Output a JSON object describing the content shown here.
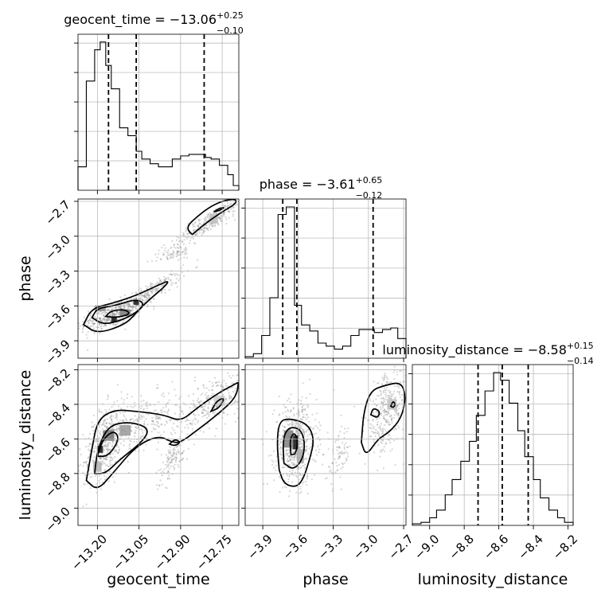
{
  "chart_data": {
    "type": "corner",
    "parameters": [
      {
        "name": "geocent_time",
        "axis_label": "geocent_time",
        "title_main": "geocent_time = −13.06",
        "title_sup": "+0.25",
        "title_sub": "−0.10",
        "range": [
          -13.27,
          -12.69
        ],
        "ticks": [
          -13.2,
          -13.05,
          -12.9,
          -12.75
        ],
        "tick_labels": [
          "−13.20",
          "−13.05",
          "−12.90",
          "−12.75"
        ],
        "quantiles": [
          -13.16,
          -13.06,
          -12.815
        ],
        "hist_edges": [
          -13.27,
          -13.24,
          -13.21,
          -13.19,
          -13.17,
          -13.15,
          -13.12,
          -13.09,
          -13.06,
          -13.04,
          -13.01,
          -12.98,
          -12.96,
          -12.93,
          -12.9,
          -12.87,
          -12.84,
          -12.81,
          -12.79,
          -12.76,
          -12.73,
          -12.71,
          -12.69
        ],
        "hist_counts": [
          0.15,
          0.7,
          0.9,
          0.95,
          0.8,
          0.65,
          0.4,
          0.35,
          0.25,
          0.2,
          0.17,
          0.15,
          0.15,
          0.2,
          0.22,
          0.23,
          0.23,
          0.21,
          0.2,
          0.16,
          0.1,
          0.03
        ]
      },
      {
        "name": "phase",
        "axis_label": "phase",
        "title_main": "phase = −3.61",
        "title_sup": "+0.65",
        "title_sub": "−0.12",
        "range": [
          -4.05,
          -2.68
        ],
        "ticks": [
          -3.9,
          -3.6,
          -3.3,
          -3.0,
          -2.7
        ],
        "tick_labels": [
          "−3.9",
          "−3.6",
          "−3.3",
          "−3.0",
          "−2.7"
        ],
        "quantiles": [
          -3.73,
          -3.61,
          -2.96
        ],
        "hist_edges": [
          -4.05,
          -3.98,
          -3.91,
          -3.84,
          -3.77,
          -3.7,
          -3.63,
          -3.57,
          -3.5,
          -3.43,
          -3.36,
          -3.29,
          -3.22,
          -3.15,
          -3.08,
          -3.02,
          -2.95,
          -2.88,
          -2.81,
          -2.75,
          -2.68
        ],
        "hist_counts": [
          0.01,
          0.03,
          0.15,
          0.4,
          0.95,
          1.0,
          0.35,
          0.22,
          0.18,
          0.1,
          0.08,
          0.06,
          0.08,
          0.15,
          0.19,
          0.19,
          0.17,
          0.19,
          0.2,
          0.13
        ]
      },
      {
        "name": "luminosity_distance",
        "axis_label": "luminosity_distance",
        "title_main": "luminosity_distance = −8.58",
        "title_sup": "+0.15",
        "title_sub": "−0.14",
        "range": [
          -9.1,
          -8.17
        ],
        "ticks": [
          -9.0,
          -8.8,
          -8.6,
          -8.4,
          -8.2
        ],
        "tick_labels": [
          "−9.0",
          "−8.8",
          "−8.6",
          "−8.4",
          "−8.2"
        ],
        "quantiles": [
          -8.72,
          -8.58,
          -8.43
        ],
        "hist_edges": [
          -9.1,
          -9.05,
          -9.0,
          -8.96,
          -8.91,
          -8.87,
          -8.82,
          -8.77,
          -8.73,
          -8.68,
          -8.63,
          -8.59,
          -8.54,
          -8.49,
          -8.45,
          -8.4,
          -8.36,
          -8.31,
          -8.26,
          -8.22,
          -8.17
        ],
        "hist_counts": [
          0.01,
          0.02,
          0.05,
          0.1,
          0.2,
          0.3,
          0.42,
          0.55,
          0.72,
          0.88,
          1.0,
          0.95,
          0.8,
          0.62,
          0.45,
          0.3,
          0.18,
          0.1,
          0.05,
          0.02
        ]
      }
    ],
    "pairs": [
      {
        "x": "geocent_time",
        "y": "phase",
        "sample_clusters": [
          {
            "x": -13.15,
            "y": -3.68,
            "sx": 0.055,
            "sy": 0.07,
            "rho": 0.6,
            "n": 420
          },
          {
            "x": -13.02,
            "y": -3.5,
            "sx": 0.06,
            "sy": 0.09,
            "rho": 0.9,
            "n": 260
          },
          {
            "x": -12.8,
            "y": -2.88,
            "sx": 0.07,
            "sy": 0.12,
            "rho": 0.93,
            "n": 300
          },
          {
            "x": -12.92,
            "y": -3.15,
            "sx": 0.03,
            "sy": 0.04,
            "rho": 0.5,
            "n": 60
          }
        ],
        "density_cells": [
          {
            "x": -13.14,
            "y": -3.72,
            "w": 0.02,
            "h": 0.04,
            "shade": 0.92
          },
          {
            "x": -13.06,
            "y": -3.57,
            "w": 0.02,
            "h": 0.04,
            "shade": 0.92
          },
          {
            "x": -13.1,
            "y": -3.66,
            "w": 0.04,
            "h": 0.06,
            "shade": 0.5
          },
          {
            "x": -13.19,
            "y": -3.62,
            "w": 0.04,
            "h": 0.05,
            "shade": 0.45
          },
          {
            "x": -12.78,
            "y": -2.85,
            "w": 0.03,
            "h": 0.08,
            "shade": 0.25
          }
        ],
        "contours": [
          [
            [
              -13.25,
              -3.76
            ],
            [
              -13.22,
              -3.62
            ],
            [
              -13.15,
              -3.58
            ],
            [
              -13.06,
              -3.51
            ],
            [
              -12.98,
              -3.42
            ],
            [
              -12.94,
              -3.38
            ],
            [
              -12.96,
              -3.44
            ],
            [
              -13.02,
              -3.56
            ],
            [
              -13.06,
              -3.66
            ],
            [
              -13.1,
              -3.76
            ],
            [
              -13.2,
              -3.84
            ],
            [
              -13.25,
              -3.76
            ]
          ],
          [
            [
              -13.22,
              -3.7
            ],
            [
              -13.2,
              -3.62
            ],
            [
              -13.14,
              -3.6
            ],
            [
              -13.06,
              -3.54
            ],
            [
              -13.03,
              -3.58
            ],
            [
              -13.06,
              -3.66
            ],
            [
              -13.12,
              -3.73
            ],
            [
              -13.18,
              -3.76
            ],
            [
              -13.22,
              -3.7
            ]
          ],
          [
            [
              -13.17,
              -3.69
            ],
            [
              -13.15,
              -3.64
            ],
            [
              -13.1,
              -3.63
            ],
            [
              -13.08,
              -3.67
            ],
            [
              -13.13,
              -3.7
            ],
            [
              -13.17,
              -3.69
            ]
          ],
          [
            [
              -12.85,
              -2.97
            ],
            [
              -12.81,
              -2.89
            ],
            [
              -12.75,
              -2.79
            ],
            [
              -12.7,
              -2.72
            ],
            [
              -12.7,
              -2.68
            ],
            [
              -12.74,
              -2.69
            ],
            [
              -12.79,
              -2.74
            ],
            [
              -12.84,
              -2.83
            ],
            [
              -12.88,
              -2.92
            ],
            [
              -12.86,
              -2.99
            ],
            [
              -12.85,
              -2.97
            ]
          ],
          [
            [
              -12.78,
              -2.79
            ],
            [
              -12.76,
              -2.76
            ],
            [
              -12.74,
              -2.75
            ],
            [
              -12.76,
              -2.78
            ],
            [
              -12.78,
              -2.79
            ]
          ]
        ]
      },
      {
        "x": "geocent_time",
        "y": "luminosity_distance",
        "sample_clusters": [
          {
            "x": -13.17,
            "y": -8.62,
            "sx": 0.04,
            "sy": 0.12,
            "rho": 0.5,
            "n": 450
          },
          {
            "x": -13.02,
            "y": -8.5,
            "sx": 0.06,
            "sy": 0.08,
            "rho": 0.4,
            "n": 220
          },
          {
            "x": -12.78,
            "y": -8.38,
            "sx": 0.06,
            "sy": 0.09,
            "rho": 0.6,
            "n": 280
          },
          {
            "x": -12.93,
            "y": -8.72,
            "sx": 0.03,
            "sy": 0.07,
            "rho": 0.7,
            "n": 120
          }
        ],
        "density_cells": [
          {
            "x": -13.19,
            "y": -8.66,
            "w": 0.02,
            "h": 0.04,
            "shade": 0.92
          },
          {
            "x": -13.16,
            "y": -8.58,
            "w": 0.04,
            "h": 0.06,
            "shade": 0.55
          },
          {
            "x": -13.1,
            "y": -8.55,
            "w": 0.04,
            "h": 0.06,
            "shade": 0.4
          },
          {
            "x": -13.2,
            "y": -8.76,
            "w": 0.03,
            "h": 0.06,
            "shade": 0.3
          },
          {
            "x": -12.76,
            "y": -8.38,
            "w": 0.04,
            "h": 0.06,
            "shade": 0.2
          }
        ],
        "contours": [
          [
            [
              -13.24,
              -8.84
            ],
            [
              -13.22,
              -8.66
            ],
            [
              -13.2,
              -8.49
            ],
            [
              -13.14,
              -8.43
            ],
            [
              -13.06,
              -8.44
            ],
            [
              -12.96,
              -8.46
            ],
            [
              -12.9,
              -8.5
            ],
            [
              -12.84,
              -8.42
            ],
            [
              -12.76,
              -8.33
            ],
            [
              -12.7,
              -8.28
            ],
            [
              -12.69,
              -8.27
            ],
            [
              -12.7,
              -8.36
            ],
            [
              -12.76,
              -8.45
            ],
            [
              -12.84,
              -8.55
            ],
            [
              -12.9,
              -8.62
            ],
            [
              -12.93,
              -8.62
            ],
            [
              -12.98,
              -8.58
            ],
            [
              -13.06,
              -8.64
            ],
            [
              -13.14,
              -8.79
            ],
            [
              -13.2,
              -8.9
            ],
            [
              -13.24,
              -8.84
            ]
          ],
          [
            [
              -13.21,
              -8.8
            ],
            [
              -13.2,
              -8.66
            ],
            [
              -13.16,
              -8.52
            ],
            [
              -13.08,
              -8.5
            ],
            [
              -13.01,
              -8.54
            ],
            [
              -13.04,
              -8.62
            ],
            [
              -13.12,
              -8.72
            ],
            [
              -13.17,
              -8.8
            ],
            [
              -13.21,
              -8.8
            ]
          ],
          [
            [
              -13.2,
              -8.7
            ],
            [
              -13.18,
              -8.6
            ],
            [
              -13.14,
              -8.55
            ],
            [
              -13.12,
              -8.6
            ],
            [
              -13.16,
              -8.7
            ],
            [
              -13.2,
              -8.7
            ]
          ],
          [
            [
              -12.94,
              -8.63
            ],
            [
              -12.92,
              -8.6
            ],
            [
              -12.9,
              -8.62
            ],
            [
              -12.92,
              -8.64
            ],
            [
              -12.94,
              -8.63
            ]
          ],
          [
            [
              -12.79,
              -8.44
            ],
            [
              -12.77,
              -8.38
            ],
            [
              -12.74,
              -8.36
            ],
            [
              -12.76,
              -8.42
            ],
            [
              -12.79,
              -8.44
            ]
          ]
        ]
      },
      {
        "x": "phase",
        "y": "luminosity_distance",
        "sample_clusters": [
          {
            "x": -3.62,
            "y": -8.62,
            "sx": 0.09,
            "sy": 0.12,
            "rho": 0.1,
            "n": 550
          },
          {
            "x": -2.85,
            "y": -8.45,
            "sx": 0.09,
            "sy": 0.12,
            "rho": 0.4,
            "n": 320
          },
          {
            "x": -3.25,
            "y": -8.7,
            "sx": 0.05,
            "sy": 0.08,
            "rho": 0.3,
            "n": 80
          }
        ],
        "density_cells": [
          {
            "x": -3.62,
            "y": -8.62,
            "w": 0.05,
            "h": 0.08,
            "shade": 0.92
          },
          {
            "x": -3.68,
            "y": -8.6,
            "w": 0.08,
            "h": 0.1,
            "shade": 0.5
          },
          {
            "x": -3.58,
            "y": -8.7,
            "w": 0.06,
            "h": 0.08,
            "shade": 0.35
          },
          {
            "x": -2.8,
            "y": -8.4,
            "w": 0.08,
            "h": 0.06,
            "shade": 0.25
          }
        ],
        "contours": [
          [
            [
              -3.76,
              -8.78
            ],
            [
              -3.78,
              -8.62
            ],
            [
              -3.76,
              -8.5
            ],
            [
              -3.68,
              -8.48
            ],
            [
              -3.52,
              -8.51
            ],
            [
              -3.46,
              -8.6
            ],
            [
              -3.5,
              -8.72
            ],
            [
              -3.56,
              -8.84
            ],
            [
              -3.62,
              -8.88
            ],
            [
              -3.72,
              -8.86
            ],
            [
              -3.76,
              -8.78
            ]
          ],
          [
            [
              -3.72,
              -8.74
            ],
            [
              -3.73,
              -8.6
            ],
            [
              -3.68,
              -8.53
            ],
            [
              -3.58,
              -8.54
            ],
            [
              -3.54,
              -8.62
            ],
            [
              -3.56,
              -8.72
            ],
            [
              -3.64,
              -8.78
            ],
            [
              -3.72,
              -8.74
            ]
          ],
          [
            [
              -3.66,
              -8.69
            ],
            [
              -3.67,
              -8.6
            ],
            [
              -3.63,
              -8.56
            ],
            [
              -3.6,
              -8.61
            ],
            [
              -3.62,
              -8.69
            ],
            [
              -3.66,
              -8.69
            ]
          ],
          [
            [
              -3.06,
              -8.62
            ],
            [
              -3.04,
              -8.44
            ],
            [
              -2.98,
              -8.32
            ],
            [
              -2.86,
              -8.29
            ],
            [
              -2.72,
              -8.27
            ],
            [
              -2.68,
              -8.36
            ],
            [
              -2.72,
              -8.48
            ],
            [
              -2.82,
              -8.56
            ],
            [
              -2.92,
              -8.6
            ],
            [
              -3.02,
              -8.7
            ],
            [
              -3.06,
              -8.62
            ]
          ],
          [
            [
              -2.98,
              -8.46
            ],
            [
              -2.96,
              -8.42
            ],
            [
              -2.9,
              -8.44
            ],
            [
              -2.92,
              -8.48
            ],
            [
              -2.98,
              -8.46
            ]
          ],
          [
            [
              -2.81,
              -8.41
            ],
            [
              -2.79,
              -8.38
            ],
            [
              -2.77,
              -8.4
            ],
            [
              -2.79,
              -8.42
            ],
            [
              -2.81,
              -8.41
            ]
          ]
        ]
      }
    ]
  }
}
